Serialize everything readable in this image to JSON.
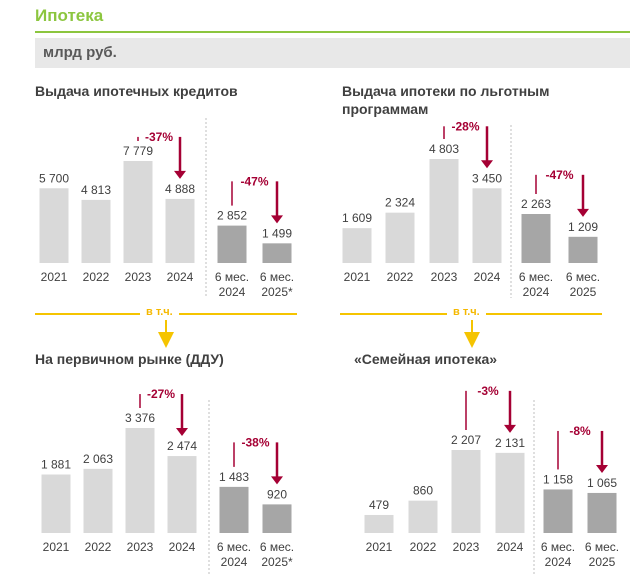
{
  "header": {
    "title": "Ипотека",
    "unit": "млрд руб."
  },
  "colors": {
    "bar_light": "#d9d9d9",
    "bar_dark": "#a6a6a6",
    "arrow": "#a50034",
    "green": "#8cc63f",
    "yellow": "#f5c400"
  },
  "connector_label": "в т.ч.",
  "chart_data": [
    {
      "type": "bar",
      "title": "Выдача ипотечных кредитов",
      "categories": [
        "2021",
        "2022",
        "2023",
        "2024",
        "6 мес.|2024",
        "6 мес.|2025*"
      ],
      "values": [
        5700,
        4813,
        7779,
        4888,
        2852,
        1499
      ],
      "value_labels": [
        "5 700",
        "4 813",
        "7 779",
        "4 888",
        "2 852",
        "1 499"
      ],
      "changes": [
        {
          "label": "-37%",
          "from": 2,
          "to": 3
        },
        {
          "label": "-47%",
          "from": 4,
          "to": 5
        }
      ]
    },
    {
      "type": "bar",
      "title": "Выдача ипотеки по льготным программам",
      "categories": [
        "2021",
        "2022",
        "2023",
        "2024",
        "6 мес.|2024",
        "6 мес.|2025"
      ],
      "values": [
        1609,
        2324,
        4803,
        3450,
        2263,
        1209
      ],
      "value_labels": [
        "1 609",
        "2 324",
        "4 803",
        "3 450",
        "2 263",
        "1 209"
      ],
      "changes": [
        {
          "label": "-28%",
          "from": 2,
          "to": 3
        },
        {
          "label": "-47%",
          "from": 4,
          "to": 5
        }
      ]
    },
    {
      "type": "bar",
      "title": "На первичном рынке (ДДУ)",
      "categories": [
        "2021",
        "2022",
        "2023",
        "2024",
        "6 мес.|2024",
        "6 мес.|2025*"
      ],
      "values": [
        1881,
        2063,
        3376,
        2474,
        1483,
        920
      ],
      "value_labels": [
        "1 881",
        "2 063",
        "3 376",
        "2 474",
        "1 483",
        "920"
      ],
      "changes": [
        {
          "label": "-27%",
          "from": 2,
          "to": 3
        },
        {
          "label": "-38%",
          "from": 4,
          "to": 5
        }
      ]
    },
    {
      "type": "bar",
      "title": "«Семейная ипотека»",
      "categories": [
        "2021",
        "2022",
        "2023",
        "2024",
        "6 мес.|2024",
        "6 мес.|2025"
      ],
      "values": [
        479,
        860,
        2207,
        2131,
        1158,
        1065
      ],
      "value_labels": [
        "479",
        "860",
        "2 207",
        "2 131",
        "1 158",
        "1 065"
      ],
      "changes": [
        {
          "label": "-3%",
          "from": 2,
          "to": 3
        },
        {
          "label": "-8%",
          "from": 4,
          "to": 5
        }
      ]
    }
  ]
}
